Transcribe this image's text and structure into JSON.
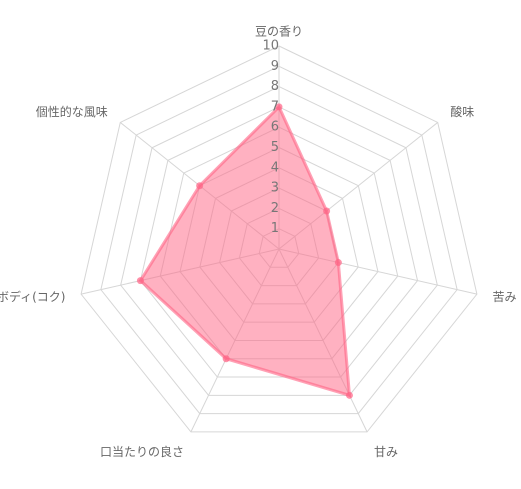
{
  "chart_data": {
    "type": "radar",
    "categories": [
      "豆の香り",
      "酸味",
      "苦み",
      "甘み",
      "口当たりの良さ",
      "ボディ(コク)",
      "個性的な風味"
    ],
    "values": [
      7,
      3,
      3,
      8,
      6,
      7,
      5
    ],
    "color": "#ff6384",
    "ylim": [
      0,
      10
    ],
    "yticks": [
      1,
      2,
      3,
      4,
      5,
      6,
      7,
      8,
      9,
      10
    ],
    "grid": true
  }
}
